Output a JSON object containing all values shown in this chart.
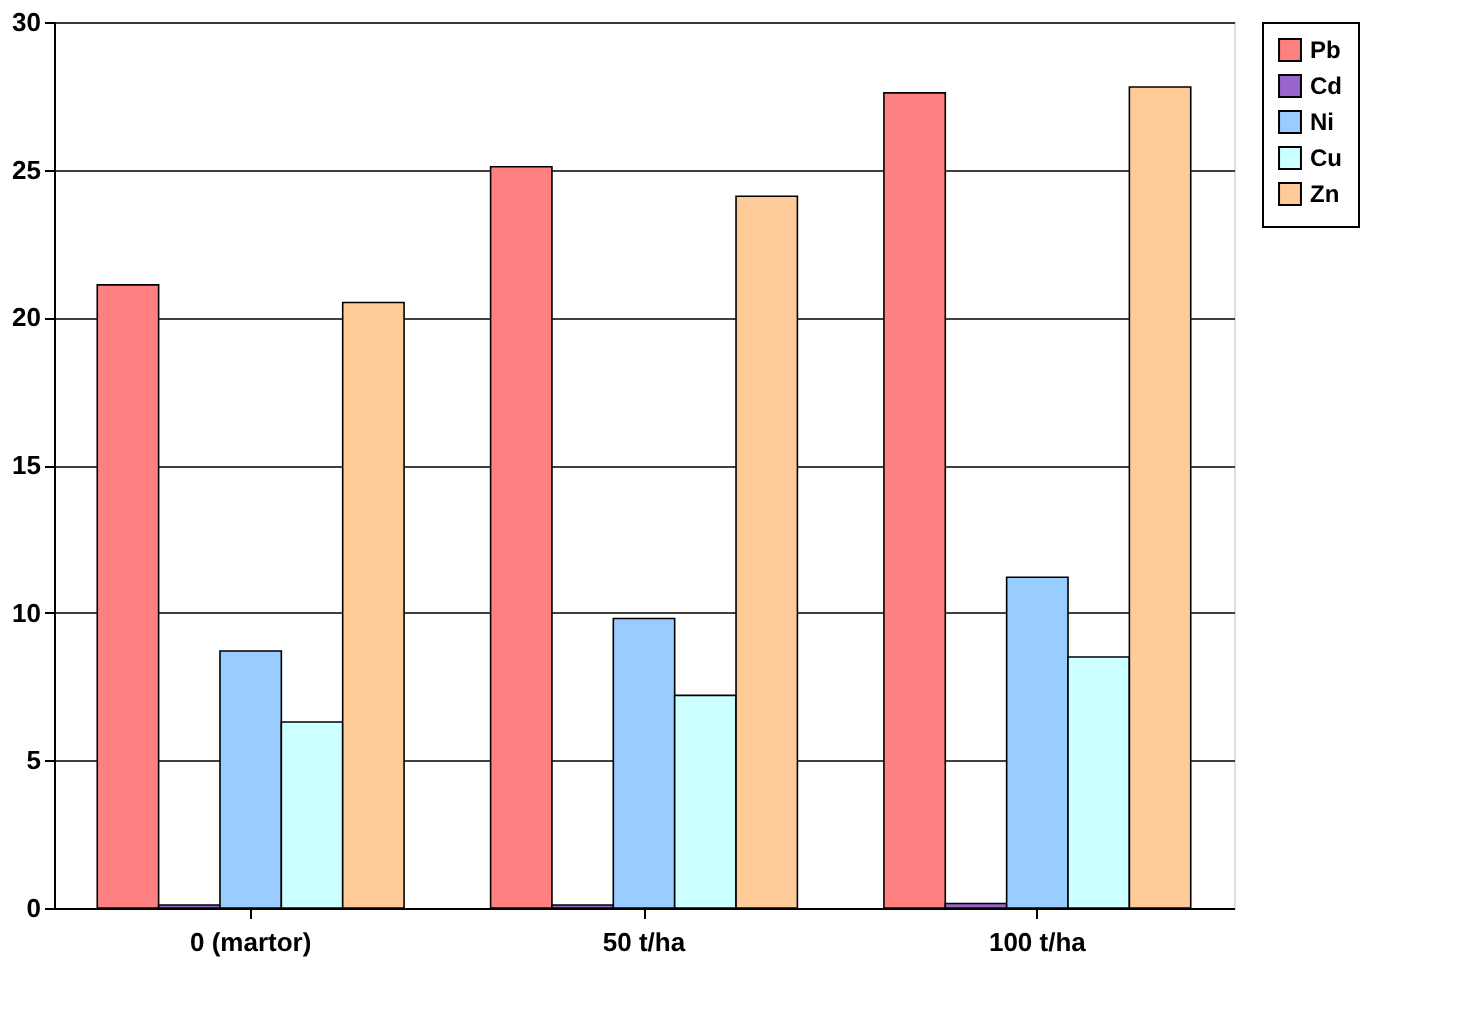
{
  "chart_data": {
    "type": "bar",
    "categories": [
      "0 (martor)",
      "50 t/ha",
      "100 t/ha"
    ],
    "series": [
      {
        "name": "Pb",
        "color": "#ff8080",
        "values": [
          21.1,
          25.1,
          27.6
        ]
      },
      {
        "name": "Cd",
        "color": "#9966cc",
        "values": [
          0.1,
          0.1,
          0.15
        ]
      },
      {
        "name": "Ni",
        "color": "#99ccff",
        "values": [
          8.7,
          9.8,
          11.2
        ]
      },
      {
        "name": "Cu",
        "color": "#ccffff",
        "values": [
          6.3,
          7.2,
          8.5
        ]
      },
      {
        "name": "Zn",
        "color": "#ffcc99",
        "values": [
          20.5,
          24.1,
          27.8
        ]
      }
    ],
    "ylim": [
      0,
      30
    ],
    "yticks": [
      0,
      5,
      10,
      15,
      20,
      25,
      30
    ],
    "grid": "y",
    "legend": "right"
  }
}
